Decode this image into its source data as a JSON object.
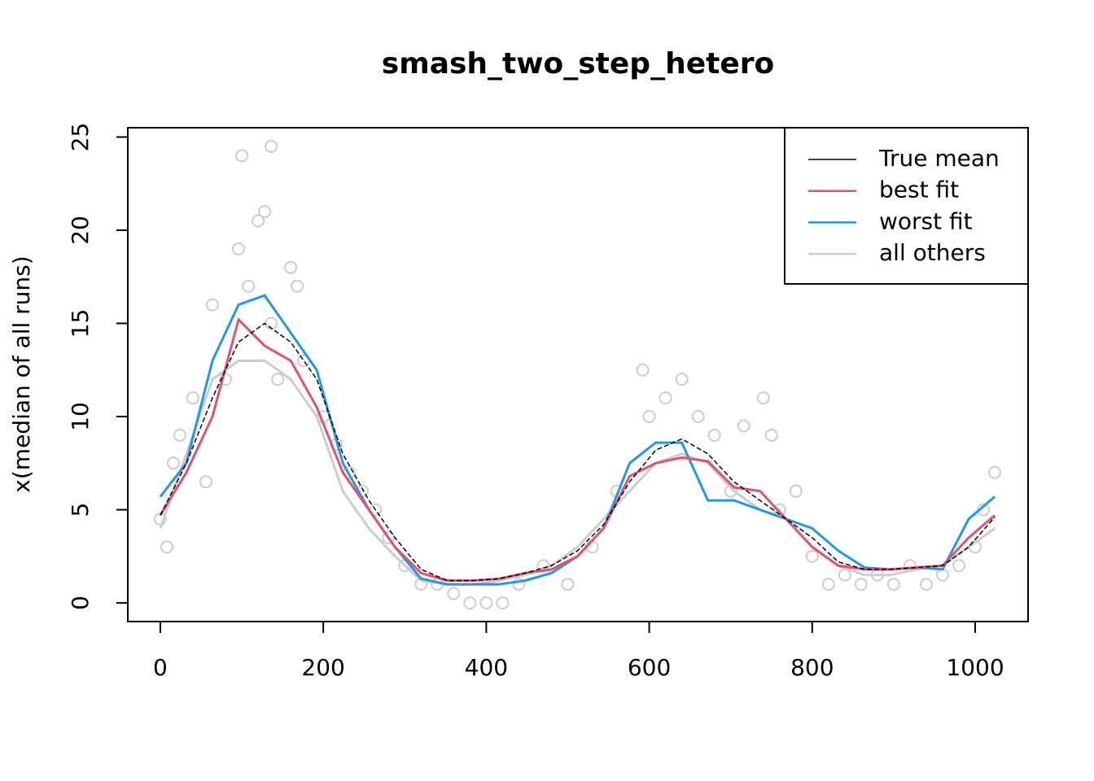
{
  "chart_data": {
    "type": "line",
    "title": "smash_two_step_hetero",
    "y_label": "x(median of all runs)",
    "x": [
      0,
      32,
      64,
      96,
      128,
      160,
      192,
      224,
      256,
      288,
      320,
      352,
      384,
      416,
      448,
      480,
      512,
      544,
      576,
      608,
      640,
      672,
      704,
      736,
      768,
      800,
      832,
      864,
      896,
      928,
      960,
      992,
      1024
    ],
    "series": [
      {
        "name": "True mean",
        "color": "#000000",
        "values": [
          4.7,
          7.5,
          11,
          14,
          15,
          14,
          12,
          8,
          5.5,
          3.5,
          1.8,
          1.2,
          1.2,
          1.3,
          1.6,
          2,
          2.8,
          4.2,
          6.5,
          8.2,
          8.8,
          8,
          6.5,
          5.5,
          4.5,
          3.5,
          2.2,
          1.8,
          1.8,
          1.9,
          2.0,
          3,
          4.6
        ]
      },
      {
        "name": "best fit",
        "color": "#DF536B",
        "values": [
          4.7,
          7,
          10,
          15.2,
          13.8,
          13,
          10.5,
          7,
          5,
          3,
          1.6,
          1.2,
          1.2,
          1.3,
          1.6,
          1.8,
          2.5,
          4,
          6.8,
          7.5,
          7.8,
          7.6,
          6.2,
          6,
          4.5,
          3,
          2,
          1.8,
          1.8,
          1.9,
          2.0,
          3.5,
          4.7
        ]
      },
      {
        "name": "worst fit",
        "color": "#2297E6",
        "values": [
          5.7,
          7.5,
          13,
          16,
          16.5,
          14.5,
          12.5,
          7.5,
          5,
          3,
          1.3,
          1,
          1,
          1,
          1.2,
          1.6,
          2.5,
          4,
          7.5,
          8.6,
          8.6,
          5.5,
          5.5,
          5,
          4.5,
          4,
          2.8,
          1.9,
          1.8,
          1.9,
          1.8,
          4.5,
          5.7
        ]
      },
      {
        "name": "all others",
        "color": "#CCCCCC",
        "values": [
          4,
          8,
          12,
          13,
          13,
          12,
          10,
          6,
          4,
          2.5,
          1.2,
          1,
          1,
          1.2,
          1.5,
          2,
          3,
          4.5,
          6,
          7.5,
          8,
          7.5,
          6,
          5,
          4.5,
          3,
          2,
          1.5,
          1.5,
          1.8,
          2,
          3,
          4
        ]
      }
    ],
    "points": {
      "color": "#CCCCCC",
      "x": [
        0,
        8,
        16,
        24,
        40,
        56,
        64,
        80,
        96,
        100,
        108,
        120,
        128,
        136,
        136,
        144,
        160,
        168,
        176,
        200,
        216,
        232,
        248,
        264,
        280,
        300,
        320,
        340,
        360,
        380,
        400,
        420,
        440,
        470,
        500,
        530,
        560,
        592,
        600,
        620,
        640,
        660,
        680,
        700,
        716,
        740,
        750,
        760,
        780,
        800,
        820,
        840,
        860,
        880,
        900,
        920,
        940,
        960,
        980,
        1000,
        1010,
        1024
      ],
      "y": [
        4.5,
        3,
        7.5,
        9,
        11,
        6.5,
        16,
        12,
        19,
        24,
        17,
        20.5,
        21,
        24.5,
        15,
        12,
        18,
        17,
        13,
        10,
        8.5,
        7,
        6,
        5,
        3.5,
        2,
        1,
        1,
        0.5,
        0,
        0,
        0,
        1,
        2,
        1,
        3,
        6,
        12.5,
        10,
        11,
        12,
        10,
        9,
        6,
        9.5,
        11,
        9,
        5,
        6,
        2.5,
        1,
        1.5,
        1,
        1.5,
        1,
        2,
        1,
        1.5,
        2,
        3,
        5,
        7
      ]
    },
    "xlim": [
      -39.9,
      1064.9
    ],
    "ylim": [
      -1.0,
      25.5
    ],
    "xticks": [
      0,
      200,
      400,
      600,
      800,
      1000
    ],
    "yticks": [
      0,
      5,
      10,
      15,
      20,
      25
    ],
    "legend": "top-right"
  }
}
